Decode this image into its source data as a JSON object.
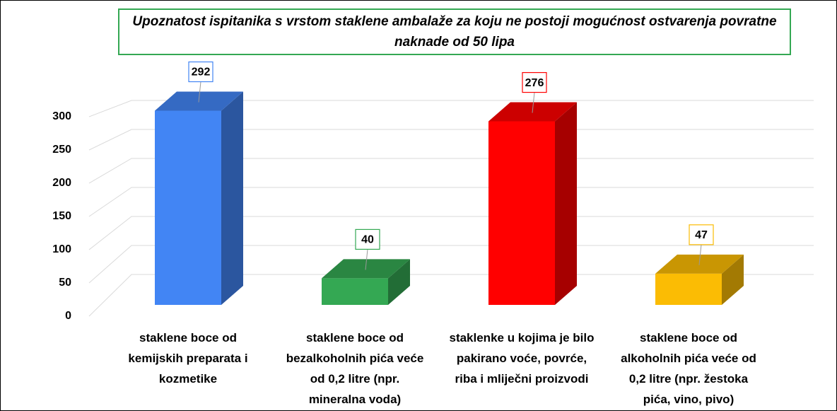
{
  "chart_data": {
    "type": "bar3d",
    "title": "Upoznatost ispitanika s vrstom staklene ambalaže za koju ne postoji mogućnost ostvarenja povratne naknade od 50 lipa",
    "categories": [
      "staklene boce od kemijskih preparata i kozmetike",
      "staklene boce od bezalkoholnih pića veće od 0,2 litre (npr. mineralna voda)",
      "staklenke u kojima je bilo pakirano voće, povrće, riba i mliječni proizvodi",
      "staklene boce od alkoholnih pića veće od 0,2 litre (npr. žestoka pića, vino, pivo)"
    ],
    "values": [
      292,
      40,
      276,
      47
    ],
    "colors": [
      "#4285f4",
      "#34a853",
      "#ff0000",
      "#fbbc04"
    ],
    "ylim": [
      0,
      350
    ],
    "yticks": [
      0,
      50,
      100,
      150,
      200,
      250,
      300
    ],
    "grid": true
  }
}
